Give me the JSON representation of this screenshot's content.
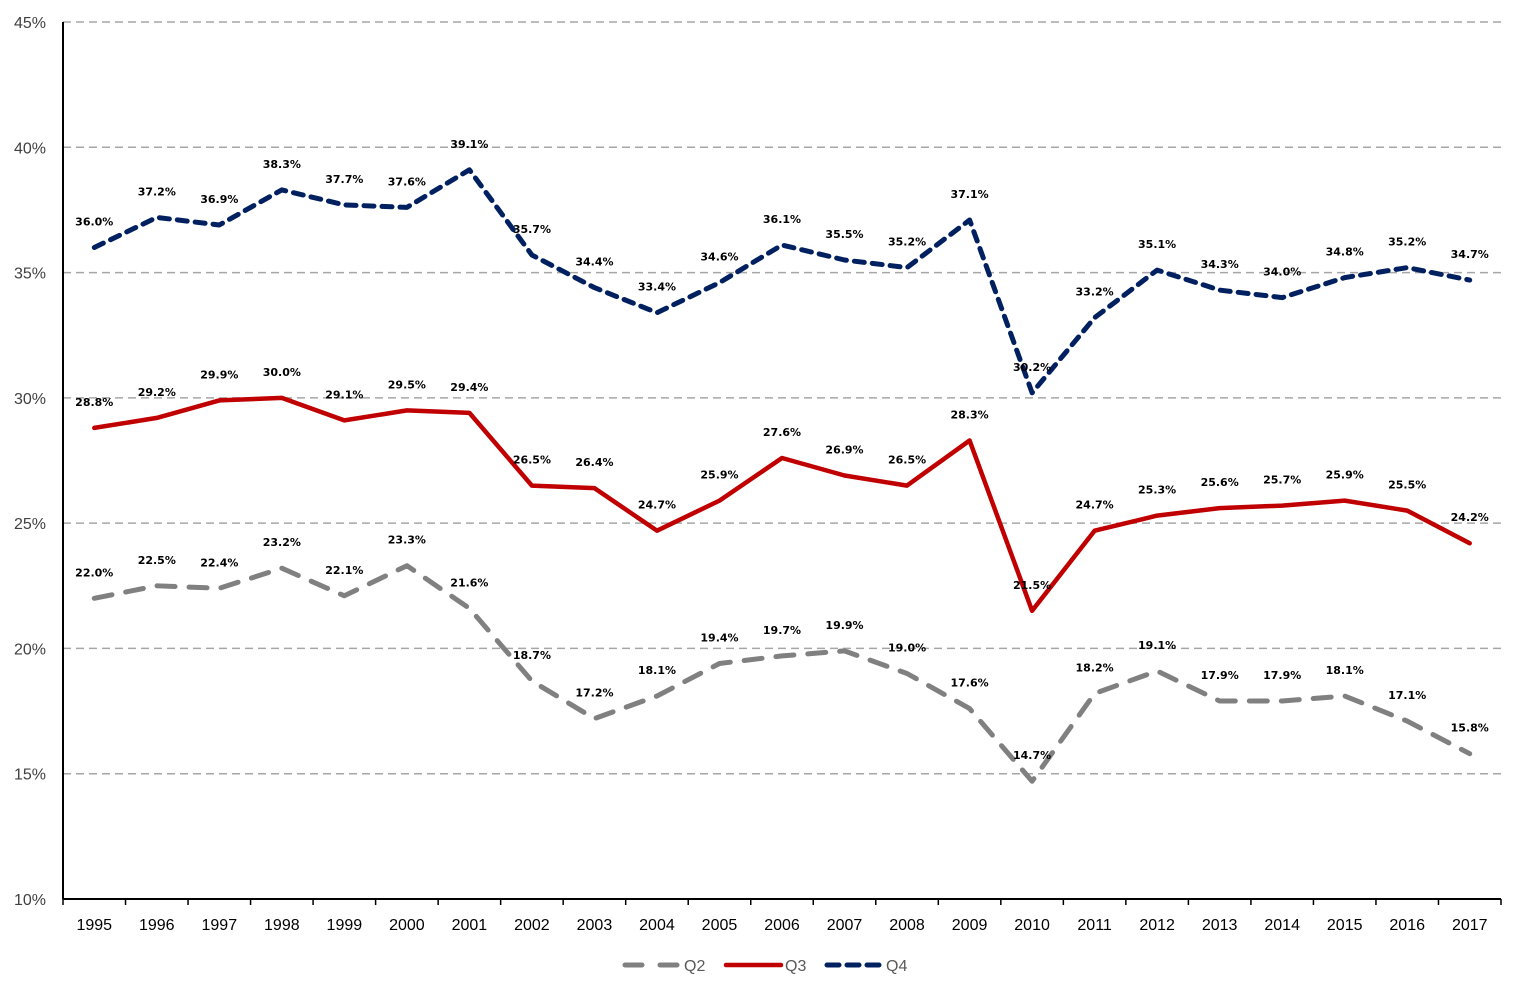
{
  "chart_data": {
    "type": "line",
    "title": "",
    "xlabel": "",
    "ylabel": "",
    "ylim": [
      10,
      45
    ],
    "yticks": [
      "10%",
      "15%",
      "20%",
      "25%",
      "30%",
      "35%",
      "40%",
      "45%"
    ],
    "ytick_values": [
      10,
      15,
      20,
      25,
      30,
      35,
      40,
      45
    ],
    "grid": true,
    "legend_position": "bottom",
    "categories": [
      "1995",
      "1996",
      "1997",
      "1998",
      "1999",
      "2000",
      "2001",
      "2002",
      "2003",
      "2004",
      "2005",
      "2006",
      "2007",
      "2008",
      "2009",
      "2010",
      "2011",
      "2012",
      "2013",
      "2014",
      "2015",
      "2016",
      "2017"
    ],
    "series": [
      {
        "name": "Q2",
        "color": "#808080",
        "style": "dashed-long",
        "values": [
          22.0,
          22.5,
          22.4,
          23.2,
          22.1,
          23.3,
          21.6,
          18.7,
          17.2,
          18.1,
          19.4,
          19.7,
          19.9,
          19.0,
          17.6,
          14.7,
          18.2,
          19.1,
          17.9,
          17.9,
          18.1,
          17.1,
          15.8
        ],
        "labels": [
          "22.0%",
          "22.5%",
          "22.4%",
          "23.2%",
          "22.1%",
          "23.3%",
          "21.6%",
          "18.7%",
          "17.2%",
          "18.1%",
          "19.4%",
          "19.7%",
          "19.9%",
          "19.0%",
          "17.6%",
          "14.7%",
          "18.2%",
          "19.1%",
          "17.9%",
          "17.9%",
          "18.1%",
          "17.1%",
          "15.8%"
        ]
      },
      {
        "name": "Q3",
        "color": "#C00000",
        "style": "solid",
        "values": [
          28.8,
          29.2,
          29.9,
          30.0,
          29.1,
          29.5,
          29.4,
          26.5,
          26.4,
          24.7,
          25.9,
          27.6,
          26.9,
          26.5,
          28.3,
          21.5,
          24.7,
          25.3,
          25.6,
          25.7,
          25.9,
          25.5,
          24.2
        ],
        "labels": [
          "28.8%",
          "29.2%",
          "29.9%",
          "30.0%",
          "29.1%",
          "29.5%",
          "29.4%",
          "26.5%",
          "26.4%",
          "24.7%",
          "25.9%",
          "27.6%",
          "26.9%",
          "26.5%",
          "28.3%",
          "21.5%",
          "24.7%",
          "25.3%",
          "25.6%",
          "25.7%",
          "25.9%",
          "25.5%",
          "24.2%"
        ]
      },
      {
        "name": "Q4",
        "color": "#002060",
        "style": "dashed-short",
        "values": [
          36.0,
          37.2,
          36.9,
          38.3,
          37.7,
          37.6,
          39.1,
          35.7,
          34.4,
          33.4,
          34.6,
          36.1,
          35.5,
          35.2,
          37.1,
          30.2,
          33.2,
          35.1,
          34.3,
          34.0,
          34.8,
          35.2,
          34.7
        ],
        "labels": [
          "36.0%",
          "37.2%",
          "36.9%",
          "38.3%",
          "37.7%",
          "37.6%",
          "39.1%",
          "35.7%",
          "34.4%",
          "33.4%",
          "34.6%",
          "36.1%",
          "35.5%",
          "35.2%",
          "37.1%",
          "30.2%",
          "33.2%",
          "35.1%",
          "34.3%",
          "34.0%",
          "34.8%",
          "35.2%",
          "34.7%"
        ]
      }
    ]
  }
}
